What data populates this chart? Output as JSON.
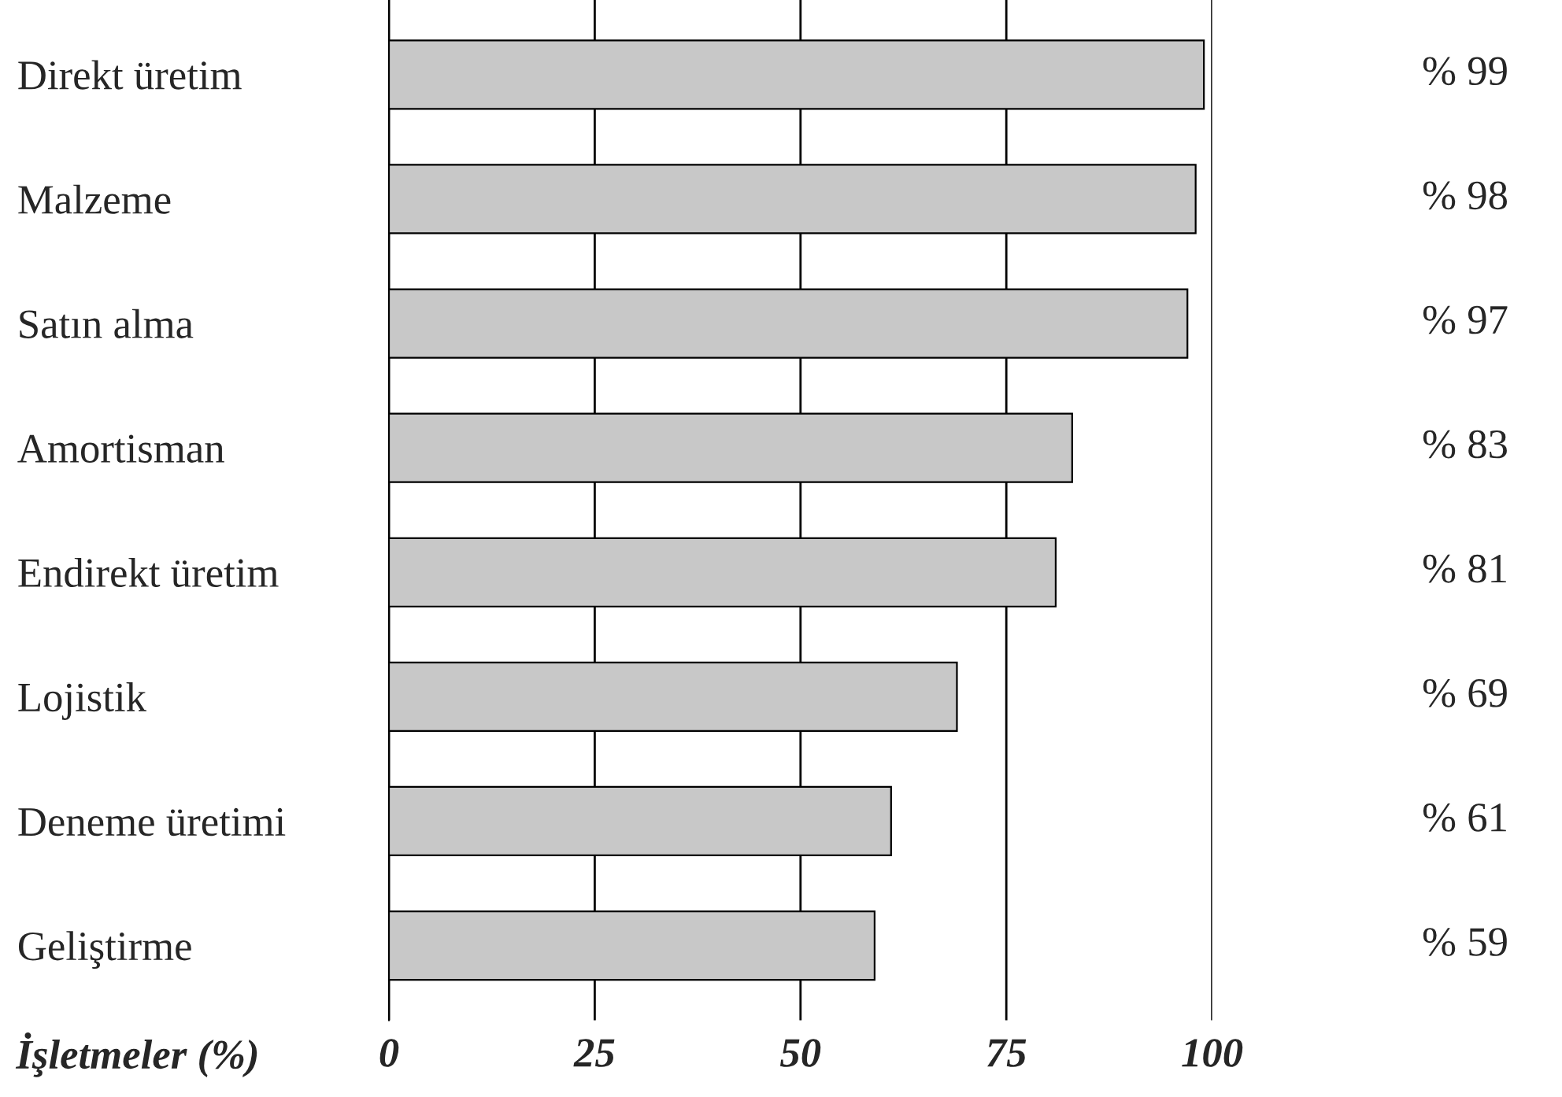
{
  "chart_data": {
    "type": "bar",
    "orientation": "horizontal",
    "categories": [
      "Direkt üretim",
      "Malzeme",
      "Satın alma",
      "Amortisman",
      "Endirekt üretim",
      "Lojistik",
      "Deneme üretimi",
      "Geliştirme"
    ],
    "values": [
      99,
      98,
      97,
      83,
      81,
      69,
      61,
      59
    ],
    "value_labels": [
      "% 99",
      "% 98",
      "% 97",
      "% 83",
      "% 81",
      "% 69",
      "% 61",
      "% 59"
    ],
    "color": "#c8c8c8",
    "xlabel": "İşletmeler (%)",
    "xlim": [
      0,
      100
    ],
    "xticks": [
      0,
      25,
      50,
      75,
      100
    ],
    "grid": "x",
    "legend": false
  }
}
